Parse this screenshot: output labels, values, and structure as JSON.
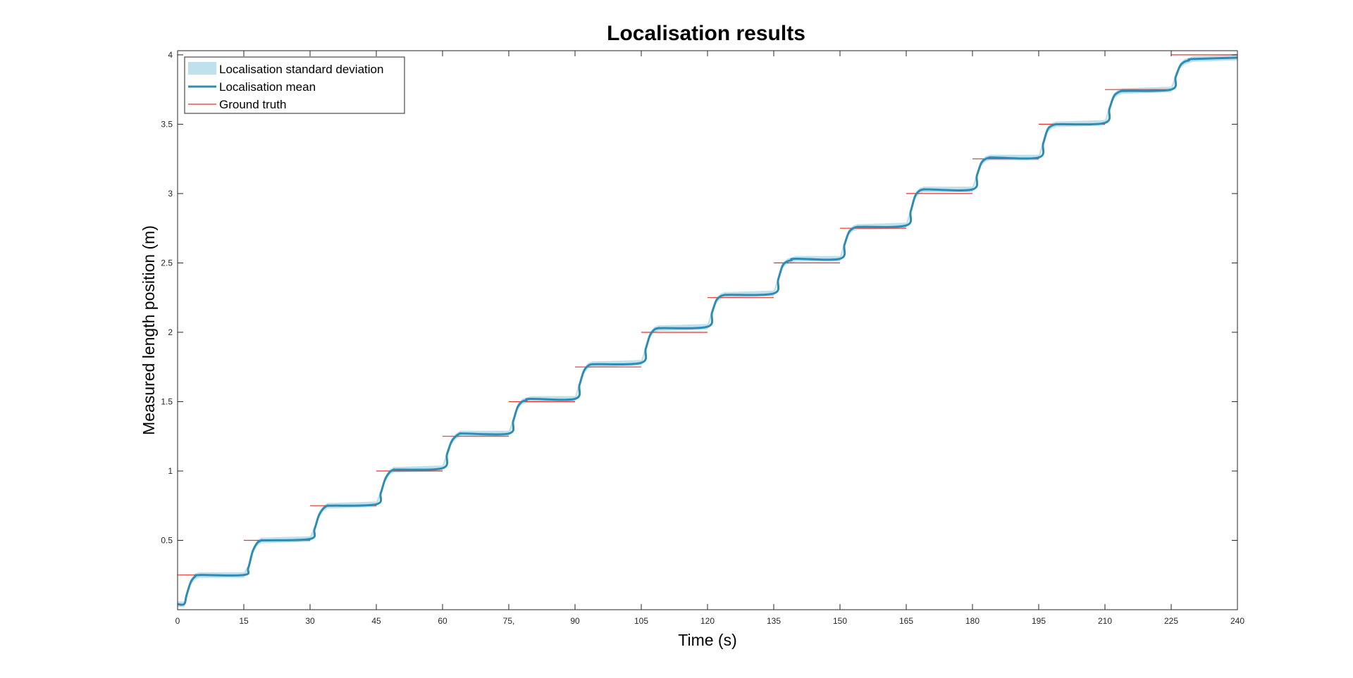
{
  "chart_data": {
    "type": "line",
    "title": "Localisation results",
    "xlabel": "Time (s)",
    "ylabel": "Measured length position (m)",
    "xlim": [
      0,
      240
    ],
    "ylim": [
      0,
      4.03
    ],
    "x_ticks": [
      0,
      15,
      30,
      45,
      60,
      75,
      90,
      105,
      120,
      135,
      150,
      165,
      180,
      195,
      210,
      225,
      240
    ],
    "x_tick_labels": [
      "0",
      "15",
      "30",
      "45",
      "60",
      "75,",
      "90",
      "105",
      "120",
      "135",
      "150",
      "165",
      "180",
      "195",
      "210",
      "225",
      "240"
    ],
    "y_ticks": [
      0.5,
      1,
      1.5,
      2,
      2.5,
      3,
      3.5,
      4
    ],
    "y_tick_labels": [
      "0.5",
      "1",
      "1.5",
      "2",
      "2.5",
      "3",
      "3.5",
      "4"
    ],
    "grid": false,
    "legend_position": "top-left",
    "colors": {
      "std_band": "#bfe1ee",
      "mean_line": "#2e8cb4",
      "ground_truth": "#e8332a"
    },
    "series": [
      {
        "name": "Localisation standard deviation",
        "kind": "band",
        "half_width": 0.02
      },
      {
        "name": "Localisation mean",
        "kind": "line",
        "x": [
          0,
          1.5,
          2,
          3,
          4,
          5,
          15,
          16,
          17,
          18,
          19,
          20,
          30,
          31,
          32,
          33,
          34,
          35,
          45,
          46,
          47,
          48,
          49,
          50,
          60,
          61,
          62,
          63,
          64,
          65,
          75,
          76,
          77,
          78,
          79,
          80,
          90,
          91,
          92,
          93,
          94,
          95,
          105,
          106,
          107,
          108,
          109,
          110,
          120,
          121,
          122,
          123,
          124,
          125,
          135,
          136,
          137,
          138,
          139,
          140,
          150,
          151,
          152,
          153,
          154,
          155,
          165,
          166,
          167,
          168,
          169,
          170,
          180,
          181,
          182,
          183,
          184,
          185,
          195,
          196,
          197,
          198,
          199,
          200,
          210,
          211,
          212,
          213,
          214,
          215,
          225,
          226,
          227,
          228,
          229,
          230,
          240
        ],
        "y": [
          0.04,
          0.04,
          0.1,
          0.2,
          0.24,
          0.25,
          0.25,
          0.3,
          0.42,
          0.48,
          0.5,
          0.5,
          0.51,
          0.58,
          0.68,
          0.73,
          0.75,
          0.75,
          0.76,
          0.84,
          0.94,
          0.99,
          1.01,
          1.01,
          1.02,
          1.12,
          1.21,
          1.25,
          1.27,
          1.27,
          1.27,
          1.36,
          1.46,
          1.5,
          1.51,
          1.52,
          1.52,
          1.62,
          1.72,
          1.76,
          1.77,
          1.77,
          1.78,
          1.88,
          1.98,
          2.02,
          2.03,
          2.03,
          2.04,
          2.14,
          2.23,
          2.26,
          2.27,
          2.27,
          2.28,
          2.38,
          2.48,
          2.51,
          2.52,
          2.53,
          2.53,
          2.63,
          2.72,
          2.75,
          2.76,
          2.76,
          2.77,
          2.87,
          2.98,
          3.02,
          3.03,
          3.03,
          3.03,
          3.13,
          3.22,
          3.25,
          3.26,
          3.26,
          3.26,
          3.36,
          3.46,
          3.49,
          3.5,
          3.5,
          3.51,
          3.61,
          3.7,
          3.73,
          3.74,
          3.74,
          3.75,
          3.84,
          3.92,
          3.95,
          3.96,
          3.97,
          3.98
        ]
      },
      {
        "name": "Ground truth",
        "kind": "segments",
        "segments": [
          {
            "x0": 0,
            "x1": 10,
            "y": 0.25
          },
          {
            "x0": 15,
            "x1": 30,
            "y": 0.5
          },
          {
            "x0": 30,
            "x1": 45,
            "y": 0.75
          },
          {
            "x0": 45,
            "x1": 60,
            "y": 1.0
          },
          {
            "x0": 60,
            "x1": 75,
            "y": 1.25
          },
          {
            "x0": 75,
            "x1": 90,
            "y": 1.5
          },
          {
            "x0": 90,
            "x1": 105,
            "y": 1.75
          },
          {
            "x0": 105,
            "x1": 120,
            "y": 2.0
          },
          {
            "x0": 120,
            "x1": 135,
            "y": 2.25
          },
          {
            "x0": 135,
            "x1": 150,
            "y": 2.5
          },
          {
            "x0": 150,
            "x1": 165,
            "y": 2.75
          },
          {
            "x0": 165,
            "x1": 180,
            "y": 3.0
          },
          {
            "x0": 180,
            "x1": 195,
            "y": 3.25
          },
          {
            "x0": 195,
            "x1": 210,
            "y": 3.5
          },
          {
            "x0": 210,
            "x1": 225,
            "y": 3.75
          },
          {
            "x0": 225,
            "x1": 240,
            "y": 4.0
          }
        ]
      }
    ]
  }
}
